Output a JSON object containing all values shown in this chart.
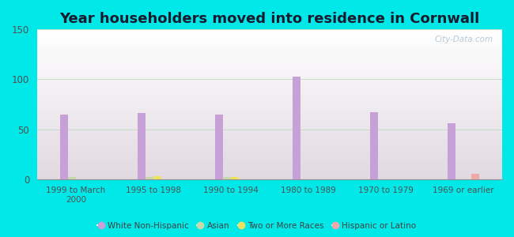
{
  "title": "Year householders moved into residence in Cornwall",
  "categories": [
    "1999 to March\n2000",
    "1995 to 1998",
    "1990 to 1994",
    "1980 to 1989",
    "1970 to 1979",
    "1969 or earlier"
  ],
  "series": {
    "White Non-Hispanic": [
      65,
      66,
      65,
      103,
      67,
      56
    ],
    "Asian": [
      2,
      2,
      2,
      0,
      0,
      0
    ],
    "Two or More Races": [
      0,
      3,
      2,
      0,
      0,
      0
    ],
    "Hispanic or Latino": [
      0,
      0,
      0,
      0,
      0,
      5
    ]
  },
  "colors": {
    "White Non-Hispanic": "#c8a0d8",
    "Asian": "#c8d8a8",
    "Two or More Races": "#f0e060",
    "Hispanic or Latino": "#f0a8a8"
  },
  "bar_width": 0.1,
  "ylim": [
    0,
    150
  ],
  "yticks": [
    0,
    50,
    100,
    150
  ],
  "background_color": "#00e8e8",
  "title_fontsize": 13,
  "watermark": "City-Data.com"
}
